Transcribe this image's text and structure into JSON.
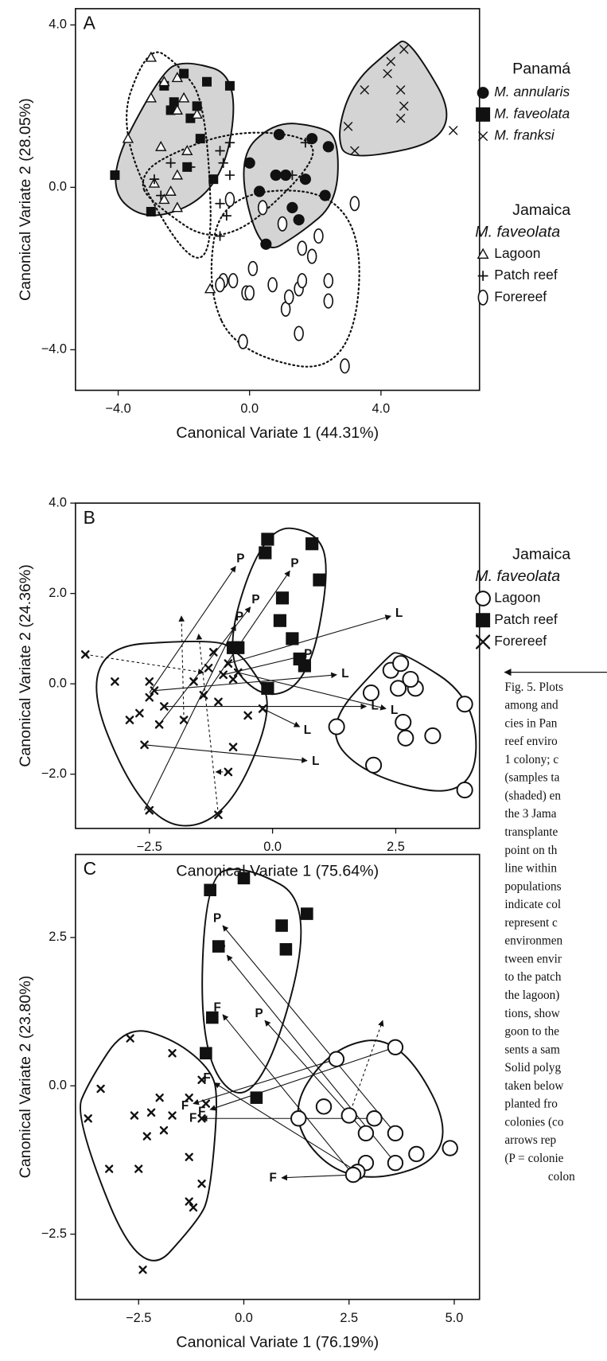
{
  "chart_data": [
    {
      "type": "scatter",
      "panel": "A",
      "xlabel": "Canonical Variate 1 (44.31%)",
      "ylabel": "Canonical Variate 2 (28.05%)",
      "xlim": [
        -5.3,
        7.0
      ],
      "ylim": [
        -5.0,
        4.4
      ],
      "xticks": [
        {
          "value": -4,
          "label": "−4.0"
        },
        {
          "value": 0,
          "label": "0.0"
        },
        {
          "value": 4,
          "label": "4.0"
        }
      ],
      "yticks": [
        {
          "value": -4,
          "label": "−4.0"
        },
        {
          "value": 0,
          "label": "0.0"
        },
        {
          "value": 4,
          "label": "4.0"
        }
      ],
      "groups": [
        {
          "title": "Panamá",
          "series": [
            {
              "name": "M. annularis",
              "italic": true,
              "marker": "filled-circle",
              "color": "#000000",
              "hull": "solid",
              "hull_fill": "#d4d4d4",
              "x": [
                0.9,
                1.9,
                0.0,
                0.8,
                0.3,
                1.1,
                1.7,
                1.3,
                2.3,
                2.4,
                1.5,
                0.5
              ],
              "y": [
                1.3,
                1.2,
                0.6,
                0.3,
                -0.1,
                0.3,
                0.2,
                -0.5,
                -0.2,
                1.0,
                -0.8,
                -1.4
              ]
            },
            {
              "name": "M. faveolata",
              "italic": true,
              "marker": "filled-square",
              "color": "#000000",
              "hull": "solid",
              "hull_fill": "#d4d4d4",
              "x": [
                -4.1,
                -3.0,
                -2.6,
                -2.0,
                -1.3,
                -0.6,
                -1.6,
                -2.4,
                -1.8,
                -1.5,
                -1.9,
                -1.1,
                -2.3
              ],
              "y": [
                0.3,
                -0.6,
                2.5,
                2.8,
                2.6,
                2.5,
                2.0,
                1.9,
                1.7,
                1.2,
                0.5,
                0.2,
                2.1
              ]
            },
            {
              "name": "M. franksi",
              "italic": true,
              "marker": "x",
              "color": "#000000",
              "hull": "solid",
              "hull_fill": "#d4d4d4",
              "x": [
                3.0,
                3.5,
                4.3,
                4.7,
                4.6,
                4.7,
                4.6,
                4.2,
                3.2,
                6.2
              ],
              "y": [
                1.5,
                2.4,
                3.1,
                3.4,
                2.4,
                2.0,
                1.7,
                2.8,
                0.9,
                1.4
              ]
            }
          ]
        },
        {
          "title": "Jamaica",
          "subtitle": "M. faveolata",
          "series": [
            {
              "name": "Lagoon",
              "marker": "triangle",
              "color": "#000000",
              "hull": "dotted",
              "x": [
                -3.0,
                -2.2,
                -2.6,
                -2.0,
                -3.0,
                -2.2,
                -1.6,
                -3.7,
                -2.7,
                -1.9,
                -2.2,
                -2.9,
                -2.4,
                -2.6,
                -2.2,
                -1.2
              ],
              "y": [
                3.2,
                2.7,
                2.6,
                2.2,
                2.2,
                1.9,
                1.8,
                1.2,
                1.0,
                0.9,
                0.3,
                0.1,
                -0.1,
                -0.3,
                -0.5,
                -2.5
              ]
            },
            {
              "name": "Patch reef",
              "marker": "plus",
              "color": "#000000",
              "hull": "dotted",
              "x": [
                -2.9,
                -2.4,
                -1.8,
                -0.9,
                -0.6,
                -0.8,
                -0.6,
                -0.9,
                -0.7,
                -0.9,
                1.7,
                1.3,
                -2.7
              ],
              "y": [
                0.2,
                0.6,
                0.5,
                0.9,
                1.1,
                0.6,
                0.3,
                -0.4,
                -0.7,
                -1.2,
                1.1,
                0.3,
                -0.2
              ]
            },
            {
              "name": "Forereef",
              "marker": "ellipse",
              "color": "#000000",
              "hull": "dotted",
              "x": [
                -0.6,
                0.4,
                1.0,
                3.2,
                -0.8,
                -0.5,
                -0.9,
                -0.1,
                0.1,
                0.7,
                1.5,
                1.6,
                1.1,
                1.2,
                2.4,
                2.4,
                1.9,
                1.6,
                2.1,
                -0.2,
                1.5,
                2.9,
                0.0
              ],
              "y": [
                -0.3,
                -0.5,
                -0.9,
                -0.4,
                -2.3,
                -2.3,
                -2.4,
                -2.6,
                -2.0,
                -2.4,
                -2.5,
                -2.3,
                -3.0,
                -2.7,
                -2.8,
                -2.3,
                -1.7,
                -1.5,
                -1.2,
                -3.8,
                -3.6,
                -4.4,
                -2.6
              ]
            }
          ]
        }
      ]
    },
    {
      "type": "scatter",
      "panel": "B",
      "xlabel": "Canonical Variate 1 (75.64%)",
      "ylabel": "Canonical Variate 2 (24.36%)",
      "xlim": [
        -4.0,
        4.2
      ],
      "ylim": [
        -3.2,
        4.0
      ],
      "xticks": [
        {
          "value": -2.5,
          "label": "−2.5"
        },
        {
          "value": 0,
          "label": "0.0"
        },
        {
          "value": 2.5,
          "label": "2.5"
        }
      ],
      "yticks": [
        {
          "value": -2,
          "label": "−2.0"
        },
        {
          "value": 0,
          "label": "0.0"
        },
        {
          "value": 2,
          "label": "2.0"
        },
        {
          "value": 4,
          "label": "4.0"
        }
      ],
      "groups": [
        {
          "title": "Jamaica",
          "subtitle": "M. faveolata",
          "series": [
            {
              "name": "Lagoon",
              "marker": "open-circle",
              "color": "#000000",
              "hull": "solid",
              "x": [
                1.3,
                2.0,
                2.4,
                2.6,
                2.9,
                2.8,
                2.55,
                2.65,
                2.7,
                3.25,
                3.9,
                2.05,
                3.9
              ],
              "y": [
                -0.95,
                -0.2,
                0.3,
                0.45,
                -0.1,
                0.1,
                -0.1,
                -0.85,
                -1.2,
                -1.15,
                -0.45,
                -1.8,
                -2.35
              ]
            },
            {
              "name": "Patch reef",
              "marker": "filled-square",
              "color": "#000000",
              "hull": "solid",
              "x": [
                -0.1,
                -0.15,
                0.8,
                0.95,
                0.2,
                0.15,
                0.4,
                -0.8,
                -0.7,
                0.55,
                0.65,
                -0.1
              ],
              "y": [
                3.2,
                2.9,
                3.1,
                2.3,
                1.9,
                1.4,
                1.0,
                0.8,
                0.8,
                0.55,
                0.4,
                -0.1
              ]
            },
            {
              "name": "Forereef",
              "marker": "bold-x",
              "color": "#000000",
              "hull": "solid",
              "x": [
                -3.8,
                -3.2,
                -2.9,
                -2.7,
                -2.5,
                -2.4,
                -2.5,
                -2.2,
                -2.3,
                -1.8,
                -1.6,
                -1.2,
                -1.3,
                -1.0,
                -0.8,
                -0.7,
                -0.9,
                -0.5,
                -0.2,
                -2.6,
                -2.5,
                -1.1,
                -0.9,
                -0.8,
                -1.1,
                -1.4
              ],
              "y": [
                0.65,
                0.05,
                -0.8,
                -0.65,
                -0.3,
                -0.15,
                0.05,
                -0.5,
                -0.9,
                -0.8,
                0.05,
                0.7,
                0.35,
                0.2,
                0.1,
                0.25,
                0.45,
                -0.7,
                -0.55,
                -1.35,
                -2.8,
                -2.9,
                -1.95,
                -1.4,
                -0.4,
                -0.25
              ]
            }
          ]
        }
      ],
      "arrows": [
        {
          "x": [
            -2.5,
            -0.75
          ],
          "y": [
            -0.2,
            2.6
          ],
          "label": "P",
          "dashed": false
        },
        {
          "x": [
            -1.4,
            0.35
          ],
          "y": [
            -0.3,
            2.5
          ],
          "label": "P",
          "dashed": false
        },
        {
          "x": [
            -2.3,
            -0.45
          ],
          "y": [
            -0.9,
            1.7
          ],
          "label": "P",
          "dashed": false
        },
        {
          "x": [
            -2.6,
            -0.75
          ],
          "y": [
            -2.8,
            1.3
          ],
          "label": "P",
          "dashed": false
        },
        {
          "x": [
            -1.0,
            0.55
          ],
          "y": [
            0.2,
            0.6
          ],
          "label": "P",
          "dashed": false
        },
        {
          "x": [
            -0.9,
            2.4
          ],
          "y": [
            0.45,
            1.5
          ],
          "label": "L",
          "dashed": false
        },
        {
          "x": [
            -2.4,
            1.3
          ],
          "y": [
            -0.15,
            0.2
          ],
          "label": "L",
          "dashed": false
        },
        {
          "x": [
            -2.2,
            1.9
          ],
          "y": [
            -0.5,
            -0.5
          ],
          "label": "L",
          "dashed": false
        },
        {
          "x": [
            -0.7,
            2.3
          ],
          "y": [
            0.25,
            -0.55
          ],
          "label": "L",
          "dashed": false
        },
        {
          "x": [
            -0.2,
            0.55
          ],
          "y": [
            -0.55,
            -0.95
          ],
          "label": "L",
          "dashed": false
        },
        {
          "x": [
            -2.6,
            0.7
          ],
          "y": [
            -1.35,
            -1.7
          ],
          "label": "L",
          "dashed": false
        },
        {
          "x": [
            -3.8,
            -1.4
          ],
          "y": [
            0.65,
            0.25
          ],
          "dashed": true
        },
        {
          "x": [
            -1.8,
            -1.85
          ],
          "y": [
            -0.8,
            1.5
          ],
          "dashed": true
        },
        {
          "x": [
            -1.1,
            -1.5
          ],
          "y": [
            -2.9,
            1.1
          ],
          "dashed": true
        },
        {
          "x": [
            -0.9,
            -1.15
          ],
          "y": [
            -1.95,
            -1.95
          ],
          "dashed": true
        }
      ]
    },
    {
      "type": "scatter",
      "panel": "C",
      "xlabel": "Canonical Variate 1 (76.19%)",
      "ylabel": "Canonical Variate 2 (23.80%)",
      "xlim": [
        -4.0,
        5.6
      ],
      "ylim": [
        -3.6,
        3.9
      ],
      "xticks": [
        {
          "value": -2.5,
          "label": "−2.5"
        },
        {
          "value": 0,
          "label": "0.0"
        },
        {
          "value": 2.5,
          "label": "2.5"
        },
        {
          "value": 5,
          "label": "5.0"
        }
      ],
      "yticks": [
        {
          "value": -2.5,
          "label": "−2.5"
        },
        {
          "value": 0,
          "label": "0.0"
        },
        {
          "value": 2.5,
          "label": "2.5"
        }
      ],
      "groups": [
        {
          "series": [
            {
              "marker": "open-circle",
              "color": "#000000",
              "hull": "solid",
              "x": [
                3.6,
                2.2,
                1.9,
                1.3,
                2.5,
                3.1,
                3.6,
                2.9,
                4.1,
                3.6,
                2.9,
                2.7,
                2.6,
                4.9
              ],
              "y": [
                0.65,
                0.45,
                -0.35,
                -0.55,
                -0.5,
                -0.55,
                -0.8,
                -0.8,
                -1.15,
                -1.3,
                -1.3,
                -1.45,
                -1.5,
                -1.05
              ]
            },
            {
              "marker": "filled-square",
              "color": "#000000",
              "hull": "solid",
              "x": [
                -0.8,
                0.0,
                0.9,
                1.5,
                -0.6,
                1.0,
                -0.75,
                -0.9,
                0.3
              ],
              "y": [
                3.3,
                3.5,
                2.7,
                2.9,
                2.35,
                2.3,
                1.15,
                0.55,
                -0.2
              ]
            },
            {
              "marker": "bold-x",
              "color": "#000000",
              "hull": "solid",
              "x": [
                -2.7,
                -3.7,
                -3.4,
                -2.6,
                -2.3,
                -2.0,
                -1.7,
                -1.7,
                -2.2,
                -1.9,
                -1.3,
                -1.0,
                -1.0,
                -0.9,
                -3.2,
                -2.5,
                -1.3,
                -1.0,
                -1.3,
                -1.2,
                -2.4
              ],
              "y": [
                0.8,
                -0.55,
                -0.05,
                -0.5,
                -0.85,
                -0.2,
                0.55,
                -0.5,
                -0.45,
                -0.75,
                -0.2,
                0.1,
                -0.55,
                -0.3,
                -1.4,
                -1.4,
                -1.2,
                -1.65,
                -1.95,
                -2.05,
                -3.1
              ]
            }
          ]
        }
      ],
      "arrows": [
        {
          "x": [
            3.6,
            -0.8
          ],
          "y": [
            0.65,
            -0.4
          ],
          "label": "F",
          "dashed": false
        },
        {
          "x": [
            2.2,
            -1.2
          ],
          "y": [
            0.45,
            -0.3
          ],
          "label": "F",
          "dashed": false
        },
        {
          "x": [
            3.1,
            -1.0
          ],
          "y": [
            -0.55,
            -0.55
          ],
          "label": "F",
          "dashed": false
        },
        {
          "x": [
            2.7,
            -0.7
          ],
          "y": [
            -1.45,
            0.05
          ],
          "label": "F",
          "dashed": false
        },
        {
          "x": [
            2.6,
            -0.5
          ],
          "y": [
            -1.5,
            1.2
          ],
          "label": "F",
          "dashed": false
        },
        {
          "x": [
            3.6,
            -0.5
          ],
          "y": [
            -0.8,
            2.7
          ],
          "label": "P",
          "dashed": false
        },
        {
          "x": [
            3.6,
            -0.4
          ],
          "y": [
            -1.3,
            2.2
          ],
          "label": "P",
          "dashed": false
        },
        {
          "x": [
            2.9,
            0.5
          ],
          "y": [
            -0.8,
            1.1
          ],
          "label": "P",
          "dashed": false
        },
        {
          "x": [
            2.6,
            0.9
          ],
          "y": [
            -1.5,
            -1.55
          ],
          "label": "F",
          "dashed": false
        },
        {
          "x": [
            2.5,
            3.3
          ],
          "y": [
            -0.5,
            1.1
          ],
          "dashed": true
        }
      ]
    }
  ],
  "caption": {
    "lines": [
      "Fig. 5. Plots",
      "among and",
      "cies in Pan",
      "reef enviro",
      "1 colony; c",
      "(samples ta",
      "(shaded) en",
      "the 3 Jama",
      "transplante",
      "point on th",
      "line within",
      "populations",
      "indicate col",
      "represent c",
      "environmen",
      "tween envir",
      "to the patch",
      "the lagoon)",
      "tions, show",
      "goon to the",
      "sents a sam",
      "Solid polyg",
      "taken below",
      "planted fro",
      "colonies (co",
      "arrows rep",
      "(P = colonie",
      "colon"
    ]
  }
}
